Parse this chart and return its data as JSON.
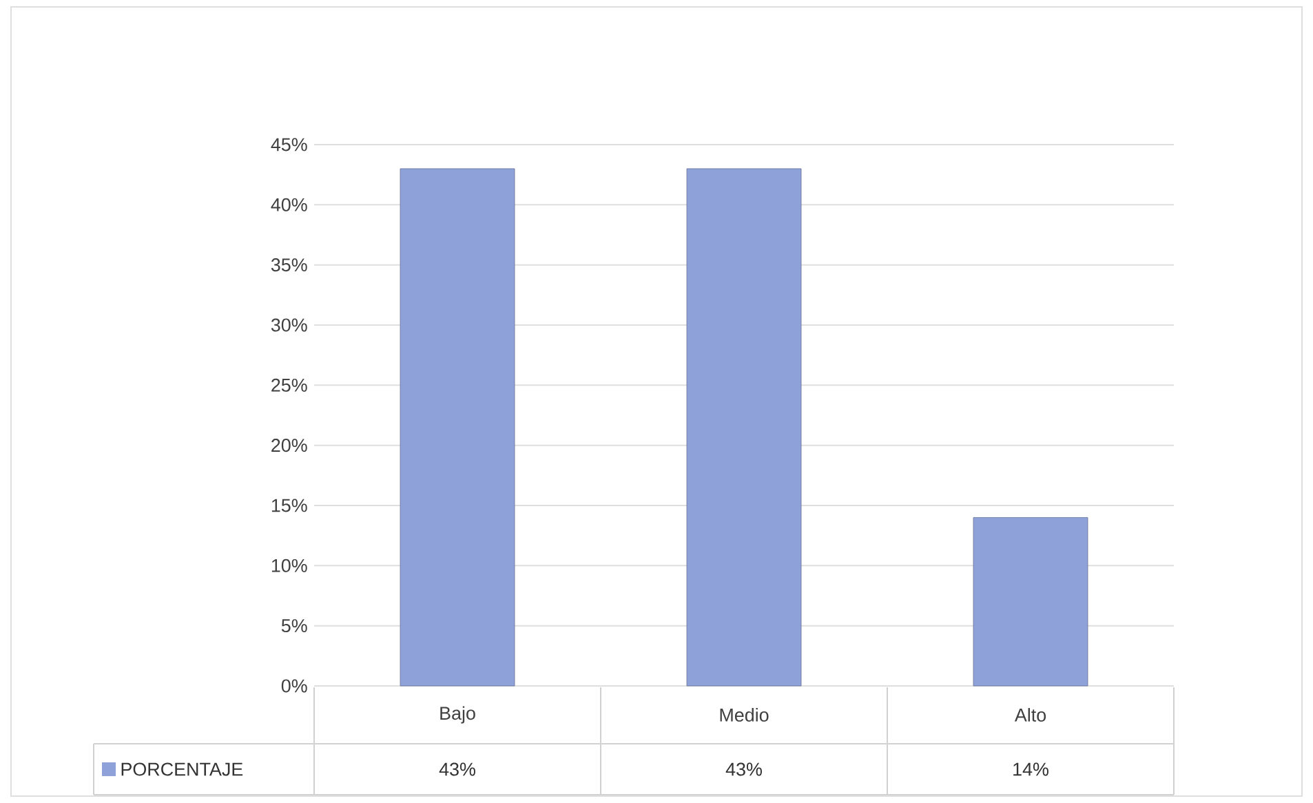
{
  "chart_data": {
    "type": "bar",
    "categories": [
      "Bajo",
      "Medio",
      "Alto"
    ],
    "series": [
      {
        "name": "PORCENTAJE",
        "color": "#8ea2d9",
        "values": [
          43,
          43,
          14
        ],
        "value_labels": [
          "43%",
          "43%",
          "14%"
        ]
      }
    ],
    "ylim": [
      0,
      45
    ],
    "yticks": [
      {
        "value": 0,
        "label": "0%"
      },
      {
        "value": 5,
        "label": "5%"
      },
      {
        "value": 10,
        "label": "10%"
      },
      {
        "value": 15,
        "label": "15%"
      },
      {
        "value": 20,
        "label": "20%"
      },
      {
        "value": 25,
        "label": "25%"
      },
      {
        "value": 30,
        "label": "30%"
      },
      {
        "value": 35,
        "label": "35%"
      },
      {
        "value": 40,
        "label": "40%"
      },
      {
        "value": 45,
        "label": "45%"
      }
    ],
    "grid": "y",
    "legend": "bottom"
  }
}
